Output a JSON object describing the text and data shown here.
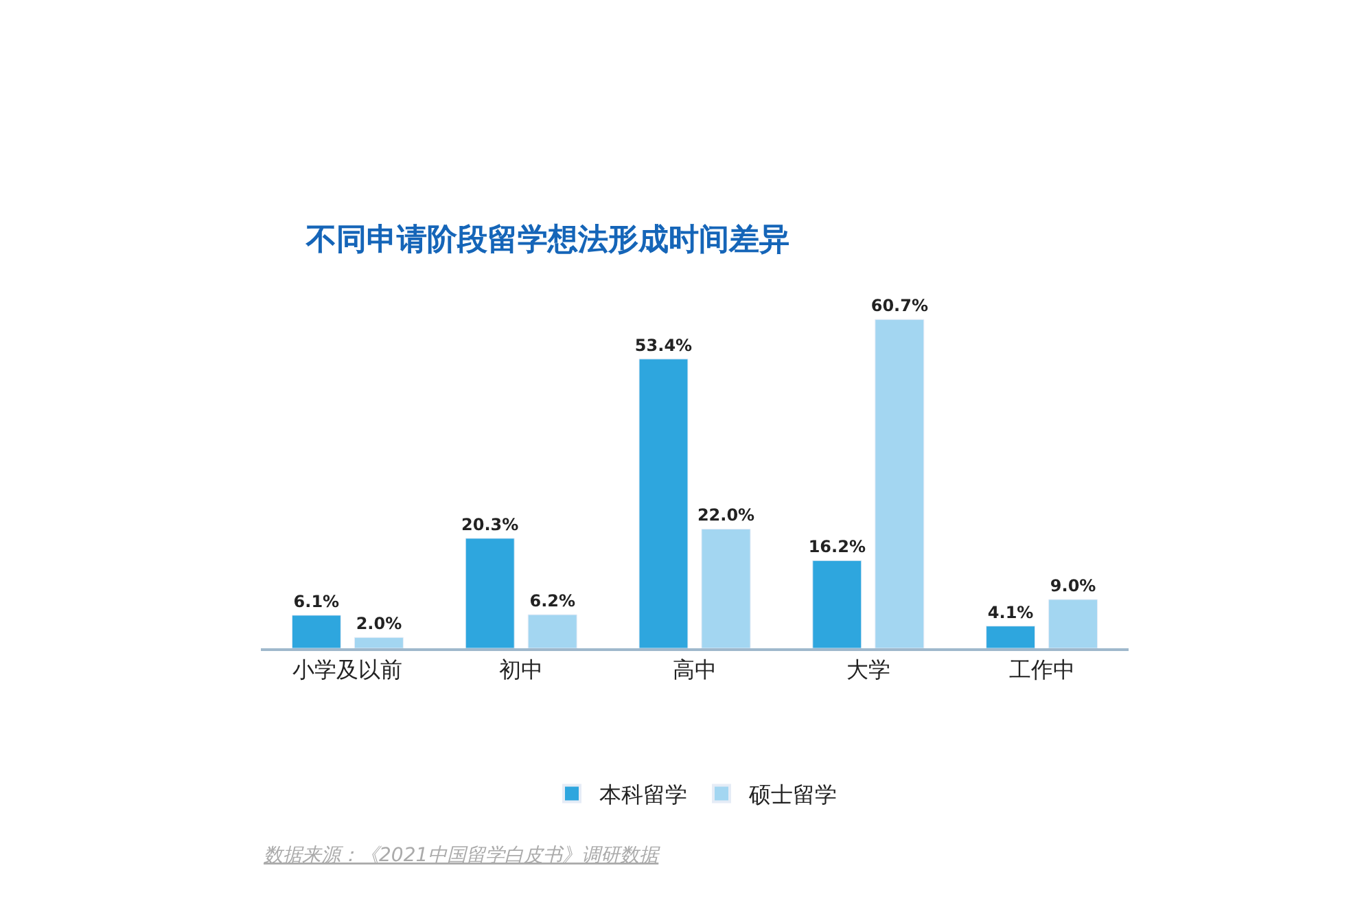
{
  "chart_data": {
    "type": "bar",
    "title": "不同申请阶段留学想法形成时间差异",
    "categories": [
      "小学及以前",
      "初中",
      "高中",
      "大学",
      "工作中"
    ],
    "series": [
      {
        "name": "本科留学",
        "color": "#2ea6de",
        "values": [
          6.1,
          20.3,
          53.4,
          16.2,
          4.1
        ],
        "value_labels": [
          "6.1%",
          "20.3%",
          "53.4%",
          "16.2%",
          "4.1%"
        ]
      },
      {
        "name": "硕士留学",
        "color": "#a3d6f1",
        "values": [
          2.0,
          6.2,
          22.0,
          60.7,
          9.0
        ],
        "value_labels": [
          "2.0%",
          "6.2%",
          "22.0%",
          "60.7%",
          "9.0%"
        ]
      }
    ],
    "legend": "bottom",
    "annotations": [
      "数据来源：《2021中国留学白皮书》调研数据"
    ]
  }
}
